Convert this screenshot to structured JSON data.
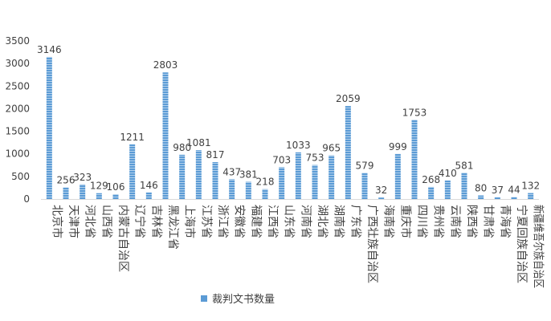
{
  "chart_data": {
    "type": "bar",
    "categories": [
      "北京市",
      "天津市",
      "河北省",
      "山西省",
      "内蒙古自治区",
      "辽宁省",
      "吉林省",
      "黑龙江省",
      "上海市",
      "江苏省",
      "浙江省",
      "安徽省",
      "福建省",
      "江西省",
      "山东省",
      "河南省",
      "湖北省",
      "湖南省",
      "广东省",
      "广西壮族自治区",
      "海南省",
      "重庆市",
      "四川省",
      "贵州省",
      "云南省",
      "陕西省",
      "甘肃省",
      "青海省",
      "宁夏回族自治区",
      "新疆维吾尔族自治区"
    ],
    "series": [
      {
        "name": "裁判文书数量",
        "values": [
          3146,
          256,
          323,
          129,
          106,
          1211,
          146,
          2803,
          980,
          1081,
          817,
          437,
          381,
          218,
          703,
          1033,
          753,
          965,
          2059,
          579,
          32,
          999,
          1753,
          268,
          410,
          581,
          80,
          37,
          44,
          132
        ]
      }
    ],
    "ylim": [
      0,
      3500
    ],
    "yticks": [
      "0",
      "500",
      "1000",
      "1500",
      "2000",
      "2500",
      "3000",
      "3500"
    ],
    "grid": false,
    "legend": "bottom",
    "colors": {
      "bar": "#5b9bd5",
      "bar_stripe": "#ffffff",
      "axis": "#d9d9d9",
      "text": "#404040"
    }
  }
}
